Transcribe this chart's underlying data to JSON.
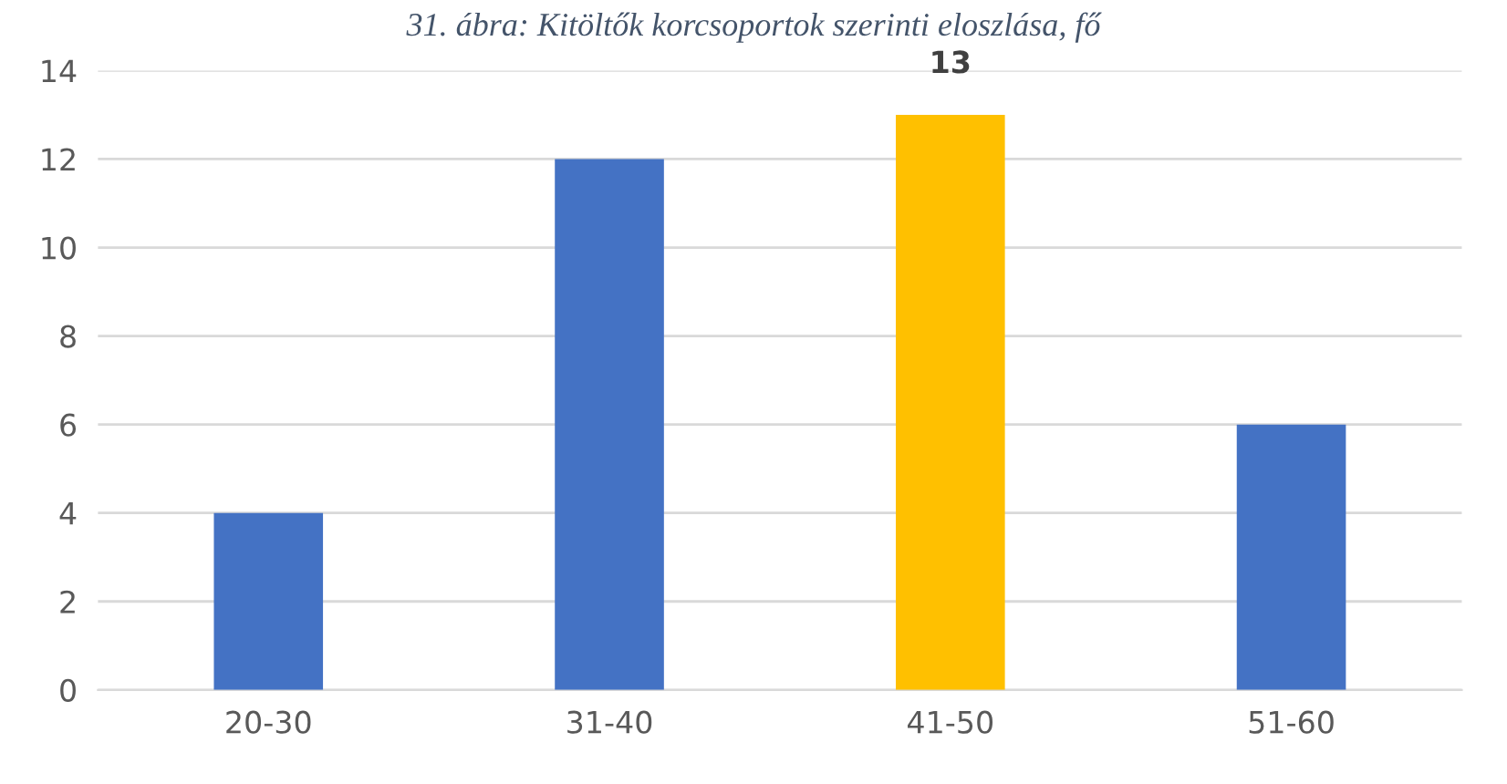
{
  "chart_data": {
    "type": "bar",
    "title": "31. ábra: Kitöltők korcsoportok szerinti eloszlása, fő",
    "categories": [
      "20-30",
      "31-40",
      "41-50",
      "51-60"
    ],
    "values": [
      4,
      12,
      13,
      6
    ],
    "colors": [
      "#4472c4",
      "#4472c4",
      "#ffc000",
      "#4472c4"
    ],
    "value_labels": [
      null,
      null,
      "13",
      null
    ],
    "ylim": [
      0,
      14
    ],
    "yticks": [
      0,
      2,
      4,
      6,
      8,
      10,
      12,
      14
    ],
    "grid": "y"
  }
}
